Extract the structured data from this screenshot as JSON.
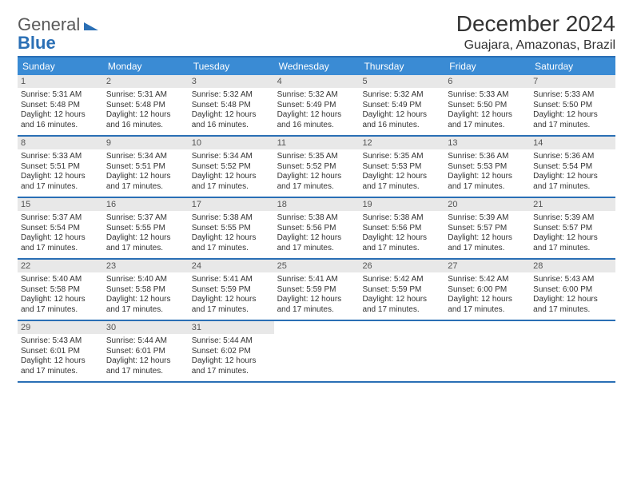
{
  "brand": {
    "word1": "General",
    "word2": "Blue"
  },
  "title": "December 2024",
  "location": "Guajara, Amazonas, Brazil",
  "colors": {
    "header_bg": "#3a8bd4",
    "border": "#2a6fb5",
    "daynum_bg": "#e8e8e8",
    "text": "#333333"
  },
  "day_headers": [
    "Sunday",
    "Monday",
    "Tuesday",
    "Wednesday",
    "Thursday",
    "Friday",
    "Saturday"
  ],
  "weeks": [
    [
      {
        "n": "1",
        "sr": "5:31 AM",
        "ss": "5:48 PM",
        "dl": "12 hours and 16 minutes."
      },
      {
        "n": "2",
        "sr": "5:31 AM",
        "ss": "5:48 PM",
        "dl": "12 hours and 16 minutes."
      },
      {
        "n": "3",
        "sr": "5:32 AM",
        "ss": "5:48 PM",
        "dl": "12 hours and 16 minutes."
      },
      {
        "n": "4",
        "sr": "5:32 AM",
        "ss": "5:49 PM",
        "dl": "12 hours and 16 minutes."
      },
      {
        "n": "5",
        "sr": "5:32 AM",
        "ss": "5:49 PM",
        "dl": "12 hours and 16 minutes."
      },
      {
        "n": "6",
        "sr": "5:33 AM",
        "ss": "5:50 PM",
        "dl": "12 hours and 17 minutes."
      },
      {
        "n": "7",
        "sr": "5:33 AM",
        "ss": "5:50 PM",
        "dl": "12 hours and 17 minutes."
      }
    ],
    [
      {
        "n": "8",
        "sr": "5:33 AM",
        "ss": "5:51 PM",
        "dl": "12 hours and 17 minutes."
      },
      {
        "n": "9",
        "sr": "5:34 AM",
        "ss": "5:51 PM",
        "dl": "12 hours and 17 minutes."
      },
      {
        "n": "10",
        "sr": "5:34 AM",
        "ss": "5:52 PM",
        "dl": "12 hours and 17 minutes."
      },
      {
        "n": "11",
        "sr": "5:35 AM",
        "ss": "5:52 PM",
        "dl": "12 hours and 17 minutes."
      },
      {
        "n": "12",
        "sr": "5:35 AM",
        "ss": "5:53 PM",
        "dl": "12 hours and 17 minutes."
      },
      {
        "n": "13",
        "sr": "5:36 AM",
        "ss": "5:53 PM",
        "dl": "12 hours and 17 minutes."
      },
      {
        "n": "14",
        "sr": "5:36 AM",
        "ss": "5:54 PM",
        "dl": "12 hours and 17 minutes."
      }
    ],
    [
      {
        "n": "15",
        "sr": "5:37 AM",
        "ss": "5:54 PM",
        "dl": "12 hours and 17 minutes."
      },
      {
        "n": "16",
        "sr": "5:37 AM",
        "ss": "5:55 PM",
        "dl": "12 hours and 17 minutes."
      },
      {
        "n": "17",
        "sr": "5:38 AM",
        "ss": "5:55 PM",
        "dl": "12 hours and 17 minutes."
      },
      {
        "n": "18",
        "sr": "5:38 AM",
        "ss": "5:56 PM",
        "dl": "12 hours and 17 minutes."
      },
      {
        "n": "19",
        "sr": "5:38 AM",
        "ss": "5:56 PM",
        "dl": "12 hours and 17 minutes."
      },
      {
        "n": "20",
        "sr": "5:39 AM",
        "ss": "5:57 PM",
        "dl": "12 hours and 17 minutes."
      },
      {
        "n": "21",
        "sr": "5:39 AM",
        "ss": "5:57 PM",
        "dl": "12 hours and 17 minutes."
      }
    ],
    [
      {
        "n": "22",
        "sr": "5:40 AM",
        "ss": "5:58 PM",
        "dl": "12 hours and 17 minutes."
      },
      {
        "n": "23",
        "sr": "5:40 AM",
        "ss": "5:58 PM",
        "dl": "12 hours and 17 minutes."
      },
      {
        "n": "24",
        "sr": "5:41 AM",
        "ss": "5:59 PM",
        "dl": "12 hours and 17 minutes."
      },
      {
        "n": "25",
        "sr": "5:41 AM",
        "ss": "5:59 PM",
        "dl": "12 hours and 17 minutes."
      },
      {
        "n": "26",
        "sr": "5:42 AM",
        "ss": "5:59 PM",
        "dl": "12 hours and 17 minutes."
      },
      {
        "n": "27",
        "sr": "5:42 AM",
        "ss": "6:00 PM",
        "dl": "12 hours and 17 minutes."
      },
      {
        "n": "28",
        "sr": "5:43 AM",
        "ss": "6:00 PM",
        "dl": "12 hours and 17 minutes."
      }
    ],
    [
      {
        "n": "29",
        "sr": "5:43 AM",
        "ss": "6:01 PM",
        "dl": "12 hours and 17 minutes."
      },
      {
        "n": "30",
        "sr": "5:44 AM",
        "ss": "6:01 PM",
        "dl": "12 hours and 17 minutes."
      },
      {
        "n": "31",
        "sr": "5:44 AM",
        "ss": "6:02 PM",
        "dl": "12 hours and 17 minutes."
      },
      null,
      null,
      null,
      null
    ]
  ],
  "labels": {
    "sunrise": "Sunrise:",
    "sunset": "Sunset:",
    "daylight": "Daylight:"
  }
}
